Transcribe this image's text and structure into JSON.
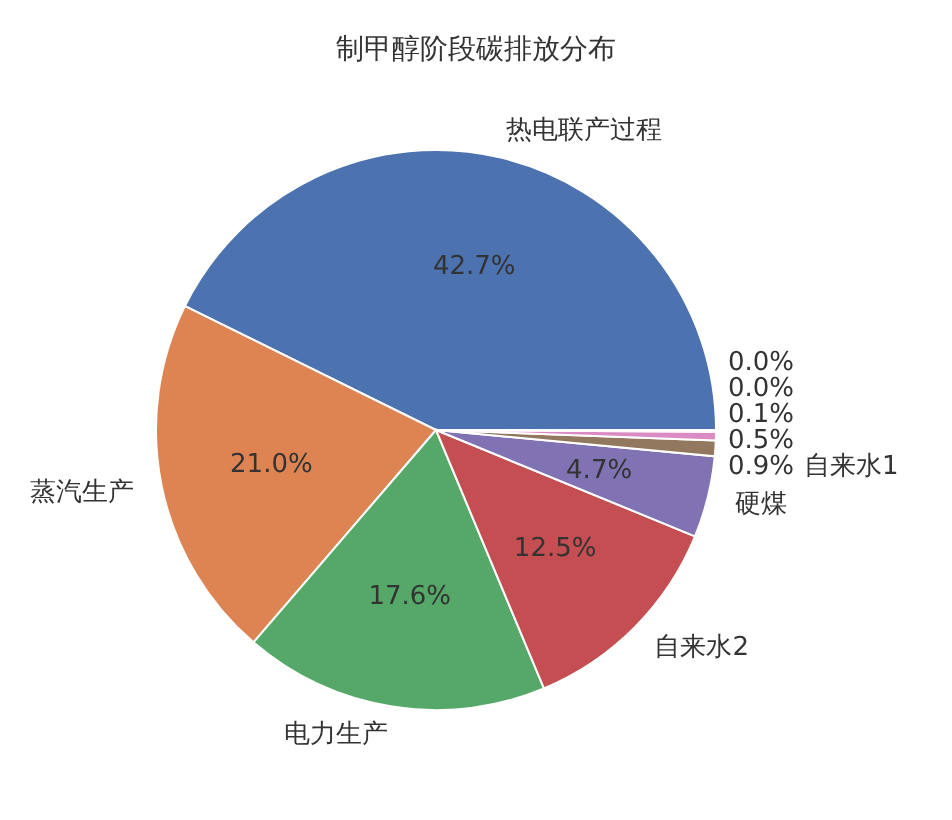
{
  "chart_data": {
    "type": "pie",
    "title": "制甲醇阶段碳排放分布",
    "categories": [
      "热电联产过程",
      "蒸汽生产",
      "电力生产",
      "自来水2",
      "硬煤",
      "自来水1",
      null,
      null,
      null,
      null
    ],
    "values": [
      42.7,
      21.0,
      17.6,
      12.5,
      4.7,
      0.9,
      0.5,
      0.1,
      0.0,
      0.0
    ],
    "colors": [
      "#4c72b0",
      "#dd8452",
      "#55a868",
      "#c44e52",
      "#8172b3",
      "#937860",
      "#da8bc3",
      "#8c8c8c",
      "#ccb974",
      "#64b5cd"
    ],
    "value_labels": [
      "42.7%",
      "21.0%",
      "17.6%",
      "12.5%",
      "4.7%",
      "0.9%",
      "0.5%",
      "0.1%",
      "0.0%",
      "0.0%"
    ]
  }
}
